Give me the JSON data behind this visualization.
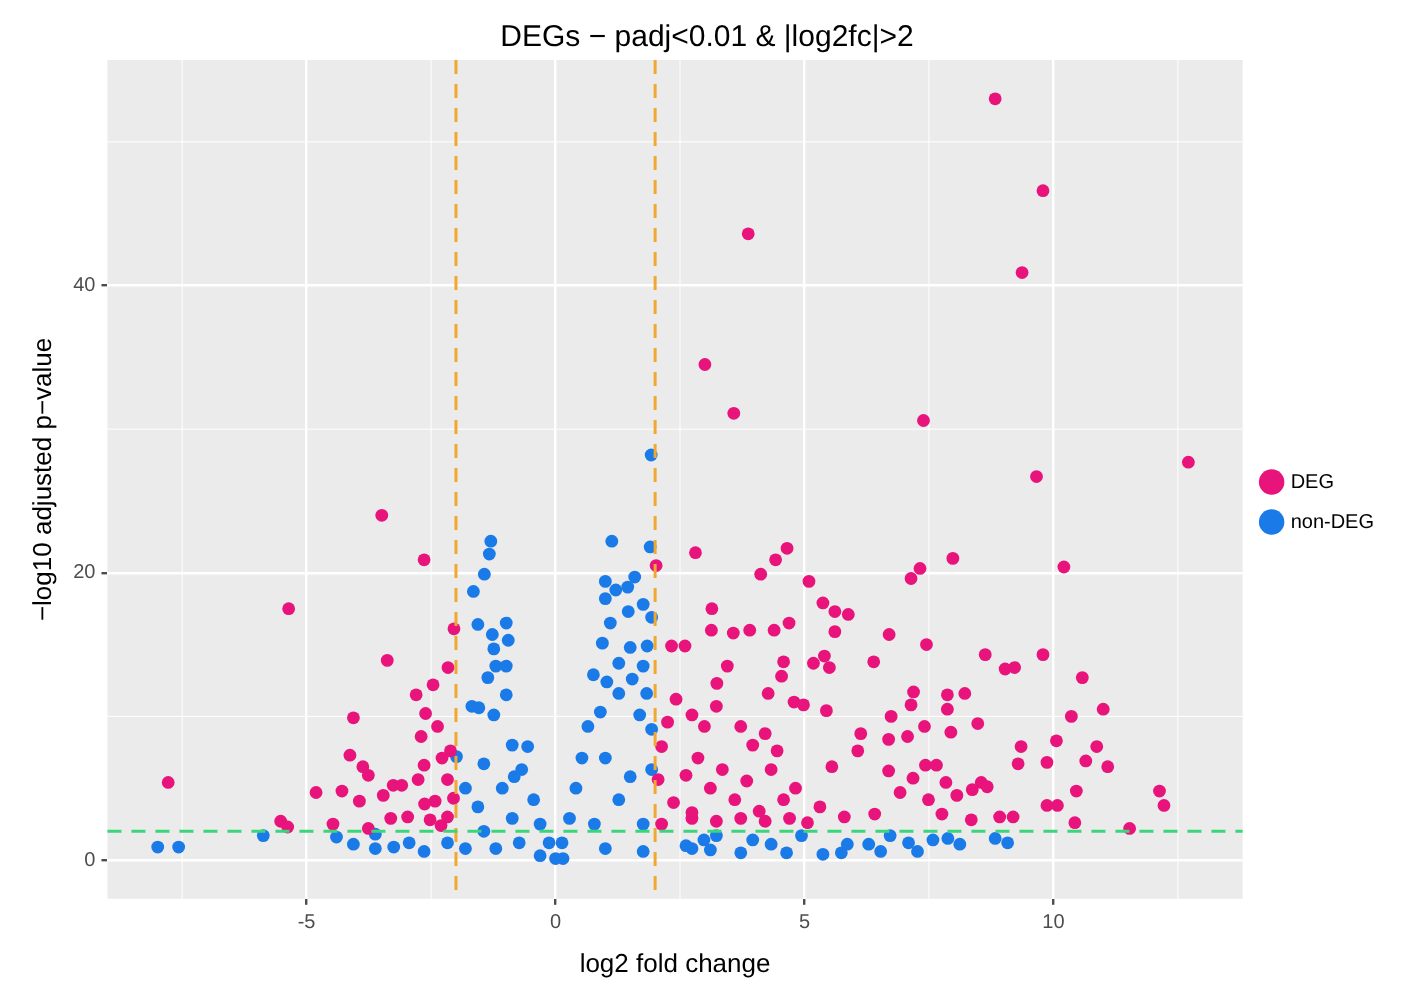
{
  "chart_data": {
    "type": "scatter",
    "title": "DEGs − padj<0.01 & |log2fc|>2",
    "xlabel": "log2 fold change",
    "ylabel": "−log10 adjusted p−value",
    "xlim": [
      -9,
      13.8
    ],
    "ylim": [
      -2.7,
      55.7
    ],
    "xticks": [
      -5,
      0,
      5,
      10
    ],
    "yticks": [
      0,
      20,
      40
    ],
    "grid": true,
    "legend": "right",
    "marker": "circle",
    "ref_lines": [
      {
        "axis": "x",
        "value": -2,
        "color": "#f0a830",
        "line_style": "dashed"
      },
      {
        "axis": "x",
        "value": 2,
        "color": "#f0a830",
        "line_style": "dashed"
      },
      {
        "axis": "y",
        "value": 2,
        "color": "#3cd67a",
        "line_style": "dashed"
      }
    ],
    "series": [
      {
        "name": "DEG",
        "color": "#e8137b",
        "x": [
          8.83,
          9.79,
          3.87,
          9.37,
          3.0,
          3.58,
          7.39,
          12.71,
          9.66,
          -3.49,
          -2.64,
          -5.36,
          -2.04,
          -3.38,
          -2.16,
          -2.46,
          -2.8,
          -4.06,
          -2.61,
          -2.37,
          -4.13,
          -3.87,
          -3.76,
          -2.64,
          -2.28,
          -3.26,
          -3.09,
          -4.29,
          -4.81,
          -3.94,
          -3.46,
          -2.76,
          -2.63,
          -7.78,
          -5.52,
          -5.38,
          -4.47,
          -3.31,
          -3.76,
          -2.97,
          -2.42,
          -2.17,
          -2.05,
          -2.3,
          -2.17,
          -2.52,
          -2.11,
          -2.7,
          2.81,
          4.65,
          4.42,
          4.12,
          5.09,
          7.98,
          7.32,
          7.14,
          10.21,
          3.14,
          5.37,
          5.61,
          5.88,
          4.69,
          3.13,
          3.57,
          3.9,
          4.39,
          5.61,
          6.7,
          7.45,
          8.63,
          9.79,
          9.03,
          9.22,
          6.39,
          5.18,
          5.4,
          5.5,
          4.58,
          3.45,
          4.54,
          3.24,
          10.58,
          4.27,
          7.19,
          7.87,
          8.22,
          4.79,
          4.98,
          7.14,
          7.87,
          11.0,
          5.44,
          6.74,
          8.48,
          10.36,
          7.41,
          7.94,
          6.13,
          7.07,
          6.69,
          10.06,
          9.35,
          10.87,
          6.07,
          5.55,
          6.69,
          7.43,
          7.65,
          9.29,
          9.87,
          10.65,
          11.09,
          7.18,
          7.84,
          8.55,
          8.67,
          6.92,
          8.06,
          8.37,
          10.46,
          12.13,
          9.87,
          10.08,
          12.22,
          7.49,
          7.76,
          8.35,
          8.92,
          9.19,
          10.43,
          11.53,
          6.41,
          5.8,
          5.31,
          5.06,
          2.62,
          2.86,
          3.11,
          3.35,
          3.6,
          3.84,
          4.09,
          4.33,
          4.58,
          4.82,
          2.74,
          2.99,
          3.23,
          3.72,
          3.96,
          4.21,
          4.45,
          2.74,
          3.23,
          3.72,
          4.21,
          4.7,
          2.02,
          2.6,
          2.33,
          2.13,
          2.25,
          2.06,
          2.37,
          2.13,
          2.74,
          2.42
        ],
        "values": [
          53.0,
          46.6,
          43.6,
          40.9,
          34.5,
          31.1,
          30.6,
          27.7,
          26.7,
          24.0,
          20.9,
          17.5,
          16.1,
          13.9,
          13.4,
          12.2,
          11.5,
          9.9,
          10.2,
          9.3,
          7.3,
          6.5,
          5.9,
          6.6,
          7.1,
          5.2,
          5.2,
          4.8,
          4.7,
          4.1,
          4.5,
          5.6,
          3.9,
          5.4,
          2.7,
          2.3,
          2.5,
          2.9,
          2.2,
          3.0,
          4.1,
          5.6,
          4.3,
          2.4,
          3.0,
          2.8,
          7.6,
          8.6,
          21.4,
          21.7,
          20.9,
          19.9,
          19.4,
          21.0,
          20.3,
          19.6,
          20.4,
          17.5,
          17.9,
          17.3,
          17.1,
          16.5,
          16.0,
          15.8,
          16.0,
          16.0,
          15.9,
          15.7,
          15.0,
          14.3,
          14.3,
          13.3,
          13.4,
          13.8,
          13.7,
          14.2,
          13.4,
          13.8,
          13.5,
          12.8,
          12.3,
          12.7,
          11.6,
          11.7,
          11.5,
          11.6,
          11.0,
          10.8,
          10.8,
          10.5,
          10.5,
          10.4,
          10.0,
          9.5,
          10.0,
          9.3,
          8.9,
          8.8,
          8.6,
          8.4,
          8.3,
          7.9,
          7.9,
          7.6,
          6.5,
          6.2,
          6.6,
          6.6,
          6.7,
          6.8,
          6.9,
          6.5,
          5.7,
          5.4,
          5.4,
          5.1,
          4.7,
          4.5,
          4.9,
          4.8,
          4.8,
          3.8,
          3.8,
          3.8,
          4.2,
          3.2,
          2.8,
          3.0,
          3.0,
          2.6,
          2.2,
          3.2,
          3.0,
          3.7,
          2.6,
          5.9,
          7.1,
          5.0,
          6.3,
          4.2,
          5.5,
          3.4,
          6.3,
          4.2,
          5.0,
          10.1,
          9.3,
          10.7,
          9.3,
          8.0,
          8.8,
          7.6,
          2.9,
          2.7,
          2.9,
          2.7,
          2.9,
          20.5,
          14.9,
          14.9,
          7.9,
          9.6,
          5.6,
          4.0,
          2.5,
          3.3,
          11.2
        ]
      },
      {
        "name": "non-DEG",
        "color": "#1a7ae8",
        "x": [
          1.92,
          -7.99,
          -7.57,
          -5.87,
          -4.4,
          -4.06,
          -3.62,
          -3.62,
          -3.25,
          -2.94,
          -2.64,
          -2.17,
          -1.3,
          -1.33,
          -1.43,
          -1.65,
          -0.99,
          -1.56,
          -1.27,
          -0.95,
          -1.24,
          -1.2,
          -0.99,
          -1.36,
          -0.99,
          -1.68,
          -1.54,
          -1.24,
          -0.87,
          -0.56,
          -1.99,
          -1.44,
          -0.68,
          -0.44,
          -0.31,
          -0.13,
          0,
          -1.81,
          -1.56,
          -1.07,
          -0.83,
          -1.81,
          -1.2,
          -0.73,
          -1.44,
          -0.31,
          -0.87,
          1.13,
          1.9,
          1.59,
          1.0,
          1.21,
          1.45,
          1.0,
          1.76,
          1.46,
          1.93,
          1.1,
          1.84,
          1.5,
          0.94,
          1.27,
          0.76,
          1.76,
          1.03,
          1.54,
          1.83,
          1.27,
          0.9,
          1.69,
          0.65,
          1.93,
          0.53,
          0.41,
          0.28,
          0.13,
          0.15,
          1.0,
          1.5,
          1.93,
          1.27,
          0.78,
          1.76,
          1.0,
          1.76,
          2.74,
          2.98,
          2.62,
          3.11,
          3.72,
          3.96,
          4.33,
          4.64,
          4.94,
          5.37,
          5.74,
          5.86,
          6.29,
          6.53,
          6.72,
          7.09,
          7.27,
          7.58,
          7.88,
          8.12,
          8.83,
          9.08,
          3.23
        ],
        "values": [
          28.2,
          0.9,
          0.9,
          1.7,
          1.6,
          1.1,
          0.8,
          1.8,
          0.9,
          1.2,
          0.6,
          1.2,
          22.2,
          21.3,
          19.9,
          18.7,
          16.5,
          16.4,
          15.7,
          15.3,
          14.7,
          13.5,
          13.5,
          12.7,
          11.5,
          10.7,
          10.6,
          10.1,
          8.0,
          7.9,
          7.2,
          6.7,
          6.3,
          4.2,
          2.5,
          1.2,
          0.1,
          5.0,
          3.7,
          5.0,
          5.8,
          0.8,
          0.8,
          1.2,
          2.0,
          0.3,
          2.9,
          22.2,
          21.8,
          19.7,
          19.4,
          18.8,
          19.0,
          18.2,
          17.8,
          17.3,
          16.9,
          16.5,
          14.9,
          14.8,
          15.1,
          13.7,
          12.9,
          13.5,
          12.4,
          12.6,
          11.6,
          11.6,
          10.3,
          10.1,
          9.3,
          9.1,
          7.1,
          5.0,
          2.9,
          1.2,
          0.1,
          7.1,
          5.8,
          6.3,
          4.2,
          2.5,
          2.5,
          0.8,
          0.6,
          0.8,
          1.4,
          1.0,
          0.7,
          0.5,
          1.4,
          1.1,
          0.5,
          1.7,
          0.4,
          0.5,
          1.1,
          1.1,
          0.6,
          1.7,
          1.2,
          0.6,
          1.4,
          1.5,
          1.1,
          1.5,
          1.2,
          1.7
        ]
      }
    ]
  }
}
